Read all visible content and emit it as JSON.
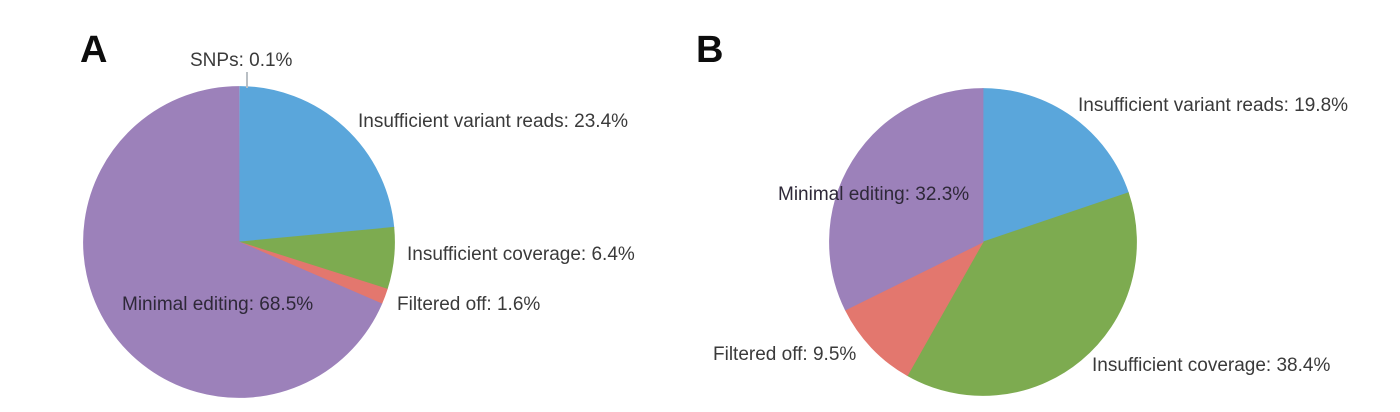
{
  "figure": {
    "background": "#ffffff",
    "label_text_color": "#3a3a3a"
  },
  "panels": [
    {
      "letter": "A"
    },
    {
      "letter": "B"
    }
  ],
  "chart_data": [
    {
      "type": "pie",
      "panel": "A",
      "title": "",
      "start_angle_clockwise_from_top_deg": 0,
      "unit": "%",
      "categories": [
        "SNPs",
        "Insufficient variant reads",
        "Insufficient coverage",
        "Filtered off",
        "Minimal editing"
      ],
      "values": [
        0.1,
        23.4,
        6.4,
        1.6,
        68.5
      ],
      "label_display": [
        "SNPs: 0.1%",
        "Insufficient variant reads: 23.4%",
        "Insufficient coverage: 6.4%",
        "Filtered off: 1.6%",
        "Minimal editing: 68.5%"
      ],
      "colors": [
        "#dfe9f1",
        "#5aa6db",
        "#7dab50",
        "#e3776e",
        "#9c81ba"
      ],
      "ids": [
        "snps",
        "insufficient-variant-reads",
        "insufficient-coverage",
        "filtered-off",
        "minimal-editing"
      ],
      "legend": "none",
      "layout": "labels placed around and inside pie"
    },
    {
      "type": "pie",
      "panel": "B",
      "title": "",
      "start_angle_clockwise_from_top_deg": 0,
      "unit": "%",
      "categories": [
        "Insufficient variant reads",
        "Insufficient coverage",
        "Filtered off",
        "Minimal editing"
      ],
      "values": [
        19.8,
        38.4,
        9.5,
        32.3
      ],
      "label_display": [
        "Insufficient variant reads: 19.8%",
        "Insufficient coverage: 38.4%",
        "Filtered off: 9.5%",
        "Minimal editing: 32.3%"
      ],
      "colors": [
        "#5aa6db",
        "#7dab50",
        "#e3776e",
        "#9c81ba"
      ],
      "ids": [
        "insufficient-variant-reads",
        "insufficient-coverage",
        "filtered-off",
        "minimal-editing"
      ],
      "legend": "none",
      "layout": "labels placed around and inside pie"
    }
  ]
}
